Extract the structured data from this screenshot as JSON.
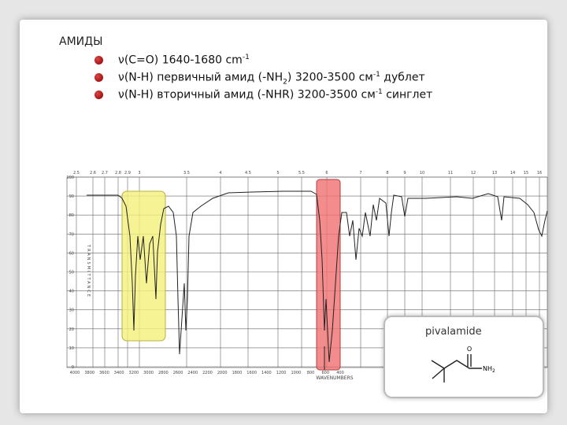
{
  "slide": {
    "title": "АМИДЫ",
    "bullets": [
      {
        "parts": [
          "ν(C=O) 1640-1680 cm"
        ],
        "sup": "-1"
      },
      {
        "parts": [
          "ν(N-H) первичный амид (-NH",
          ") 3200-3500 см"
        ],
        "sub": "2",
        "sup": "-1",
        "tail": " дублет"
      },
      {
        "parts": [
          "ν(N-H) вторичный амид (-NHR) 3200-3500 см"
        ],
        "sup": "-1",
        "tail": " синглет"
      }
    ],
    "spectrum": {
      "top_ticks": [
        "2.5",
        "2.6",
        "2.7",
        "2.8",
        "2.9",
        "3",
        "3.5",
        "4",
        "4.5",
        "5",
        "5.5",
        "6",
        "7",
        "8",
        "9",
        "10",
        "11",
        "12",
        "13",
        "14",
        "15",
        "16"
      ],
      "bottom_ticks": [
        "4000",
        "3800",
        "3600",
        "3400",
        "3200",
        "3000",
        "2800",
        "2600",
        "2400",
        "2200",
        "2000",
        "1800",
        "1600",
        "1400",
        "1200",
        "1000",
        "800",
        "600",
        "400"
      ],
      "y_ticks": [
        "100",
        "90",
        "80",
        "70",
        "60",
        "50",
        "40",
        "30",
        "20",
        "10",
        "0"
      ],
      "y_label": "TRANSMITTANCE",
      "x_label": "WAVENUMBERS"
    },
    "inset": {
      "name": "pivalamide",
      "oxygen": "O",
      "amine": "NH",
      "amine_sub": "2"
    }
  }
}
